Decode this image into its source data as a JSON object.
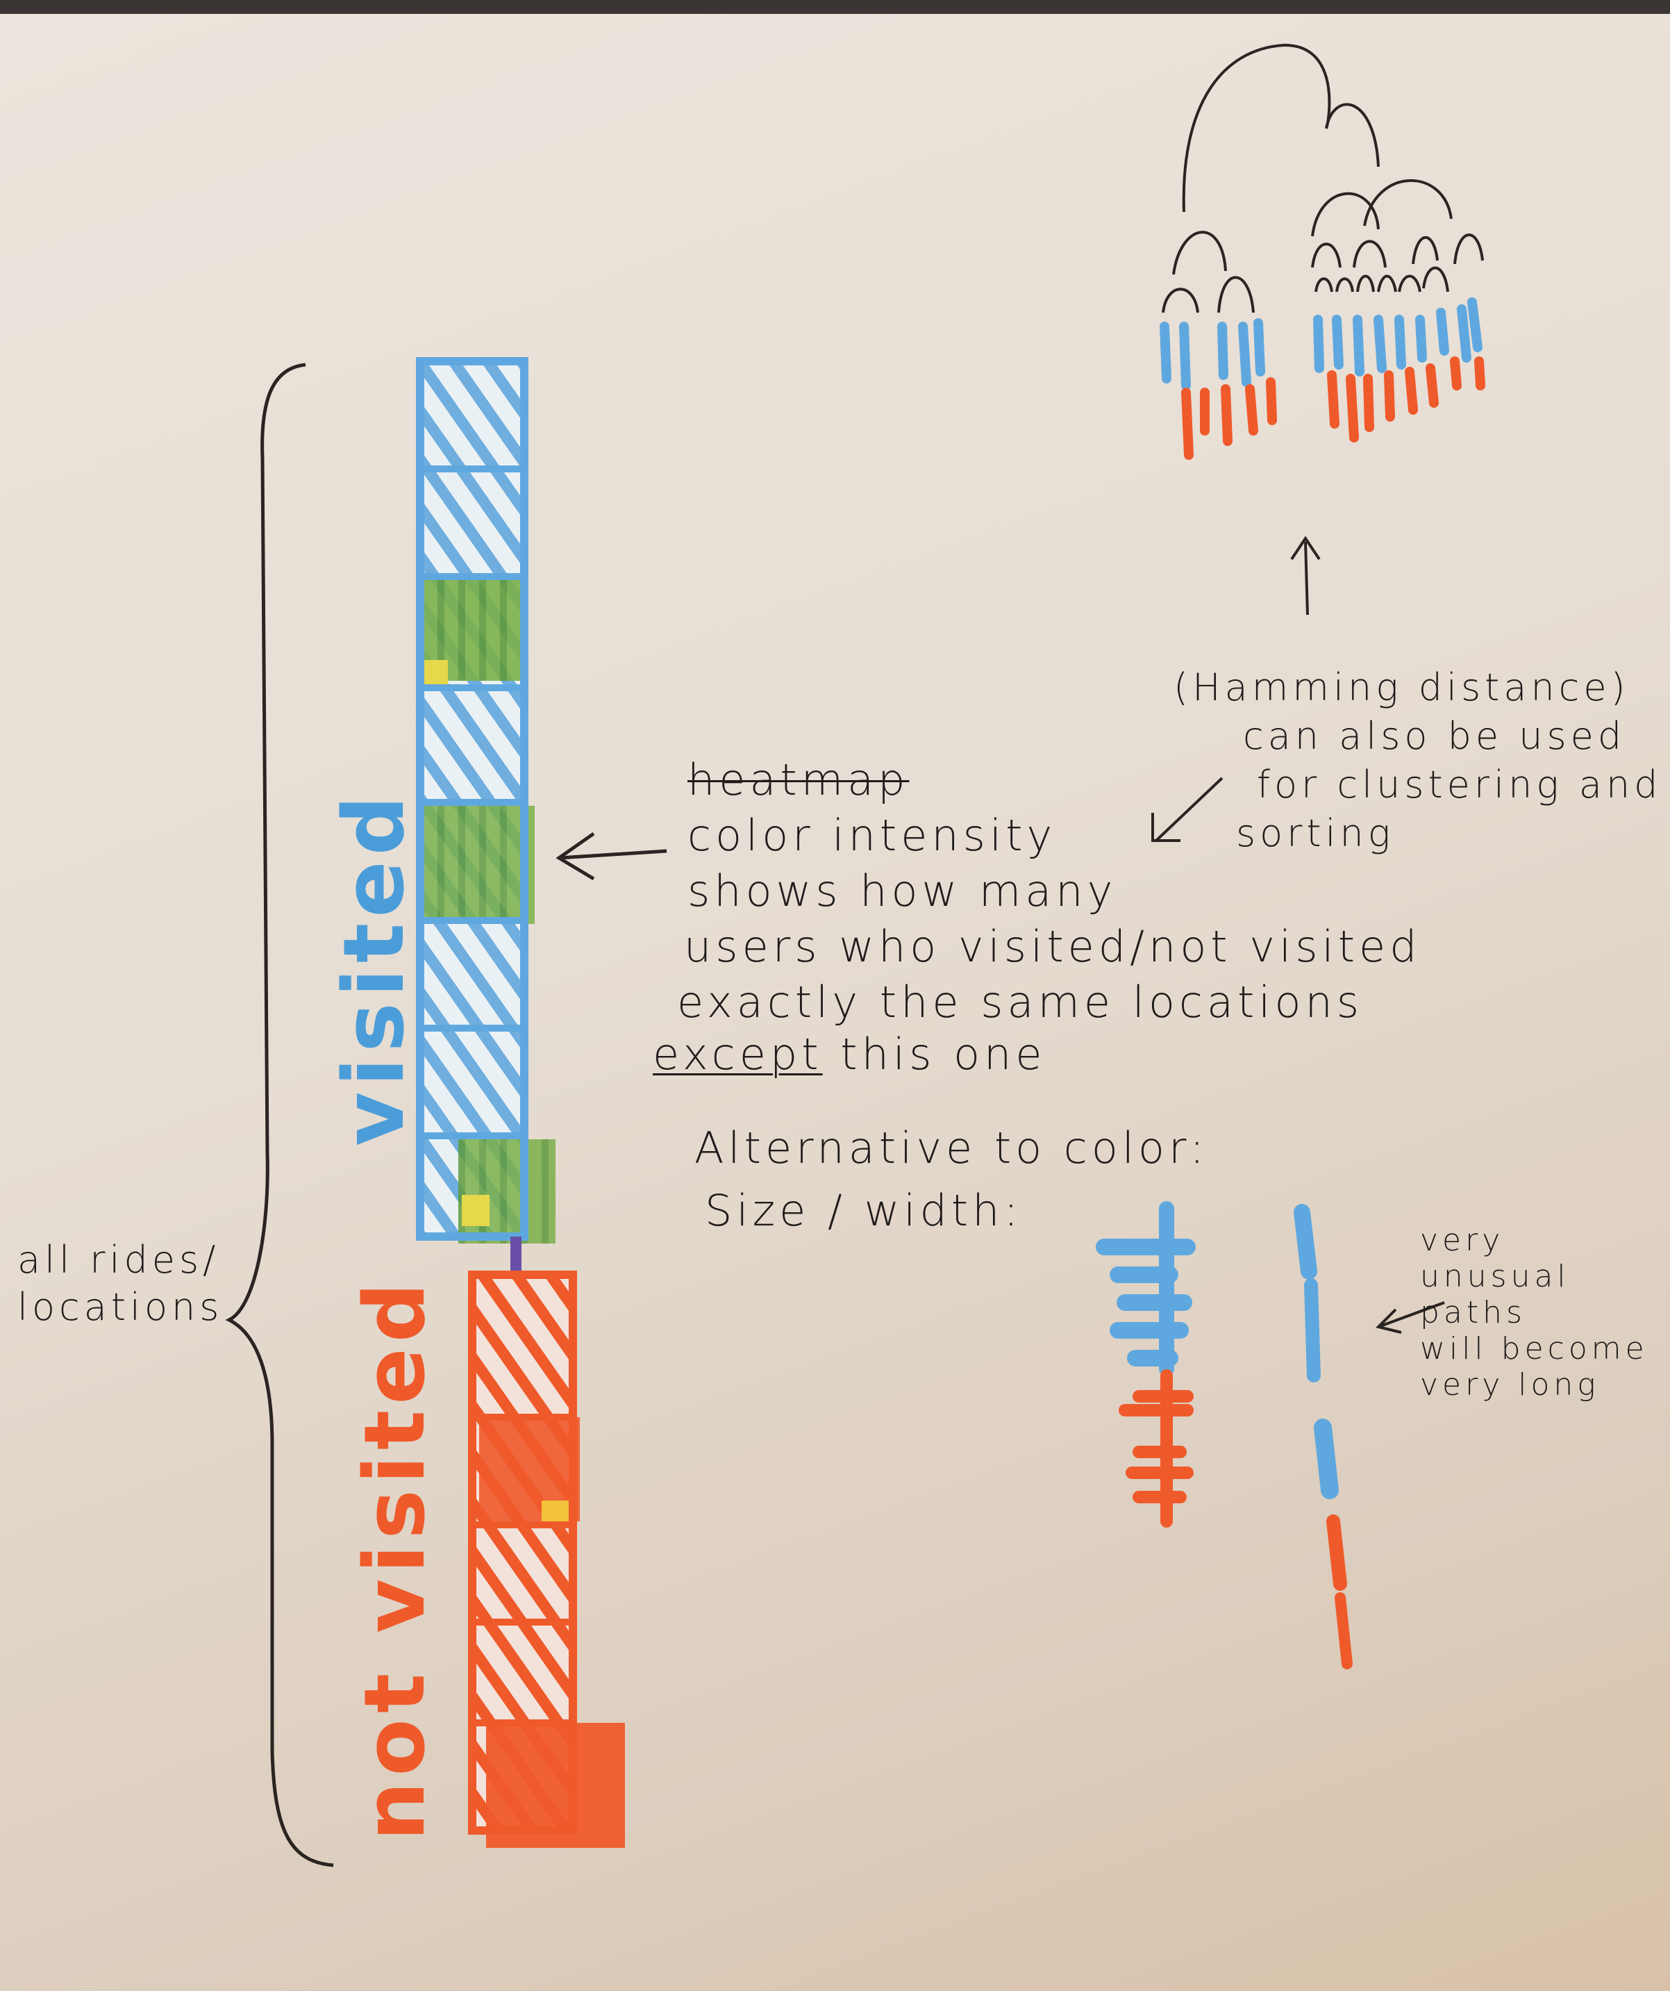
{
  "diagram": {
    "left_bracket_label": "all rides/\nlocations",
    "bar": {
      "visited_label": "visited",
      "not_visited_label": "not visited",
      "visited_segments": 8,
      "not_visited_segments": 6
    },
    "annotation": {
      "struck_word": "heatmap",
      "line1": "color intensity",
      "line2": "shows how many",
      "line3": "users who visited/not visited",
      "line4": "exactly the same locations",
      "emphasis": "except",
      "line5_rest": "this one"
    },
    "alternative": {
      "line1": "Alternative to color:",
      "line2": "Size / width:"
    },
    "unusual_note": "very\nunusual\npaths\nwill become\nvery long",
    "hamming_note": {
      "line1": "(Hamming distance)",
      "line2": "can also be used",
      "line3": "for clustering and",
      "line4": "sorting"
    },
    "colors": {
      "visited": "#5fa8df",
      "not_visited": "#ef5a2b",
      "highlight_green": "#6fa84a",
      "highlight_yellow": "#e6d84a",
      "ink": "#1f1b1a"
    }
  }
}
